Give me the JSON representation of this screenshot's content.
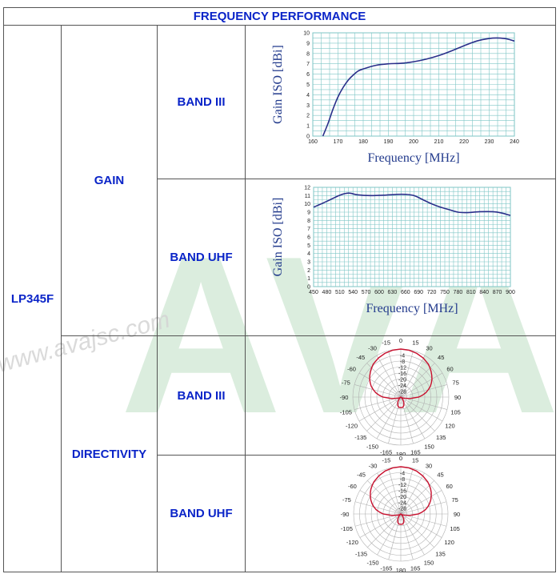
{
  "header": {
    "title": "FREQUENCY PERFORMANCE"
  },
  "model": {
    "name": "LP345F"
  },
  "sections": {
    "gain": "GAIN",
    "directivity": "DIRECTIVITY"
  },
  "bands": {
    "band_iii": "BAND III",
    "band_uhf": "BAND UHF"
  },
  "watermark": {
    "big": "AVA",
    "url": "www.avajsc.com"
  },
  "colors": {
    "title_blue": "#0a24c8",
    "curve": "#2a2f8a",
    "pattern": "#c8102e",
    "grid": "#7fc6c6",
    "watermark": "#cfe8d4"
  },
  "chart_data": [
    {
      "type": "line",
      "id": "gain-band-iii",
      "xlabel": "Frequency [MHz]",
      "ylabel": "Gain ISO [dBi]",
      "xlim": [
        160,
        240
      ],
      "ylim": [
        0,
        10
      ],
      "x_ticks": [
        160,
        170,
        180,
        190,
        200,
        210,
        220,
        230,
        240
      ],
      "y_ticks": [
        0,
        1,
        2,
        3,
        4,
        5,
        6,
        7,
        8,
        9,
        10
      ],
      "series": [
        {
          "x": [
            164,
            166,
            168,
            170,
            172,
            174,
            176,
            178,
            180,
            185,
            190,
            195,
            200,
            205,
            210,
            215,
            220,
            225,
            230,
            233,
            236,
            238,
            240
          ],
          "y": [
            0,
            1.2,
            2.6,
            3.8,
            4.7,
            5.4,
            5.9,
            6.3,
            6.5,
            6.85,
            7.0,
            7.05,
            7.2,
            7.45,
            7.8,
            8.25,
            8.75,
            9.2,
            9.45,
            9.5,
            9.45,
            9.35,
            9.2
          ]
        }
      ]
    },
    {
      "type": "line",
      "id": "gain-band-uhf",
      "xlabel": "Frequency [MHz]",
      "ylabel": "Gain ISO [dBi]",
      "xlim": [
        450,
        900
      ],
      "ylim": [
        0,
        12
      ],
      "x_ticks": [
        450,
        480,
        510,
        540,
        570,
        600,
        630,
        660,
        690,
        720,
        750,
        780,
        810,
        840,
        870,
        900
      ],
      "y_ticks": [
        0,
        1,
        2,
        3,
        4,
        5,
        6,
        7,
        8,
        9,
        10,
        11,
        12
      ],
      "series": [
        {
          "x": [
            450,
            480,
            510,
            530,
            550,
            580,
            610,
            640,
            660,
            680,
            700,
            720,
            740,
            760,
            780,
            800,
            830,
            860,
            880,
            900
          ],
          "y": [
            9.6,
            10.3,
            11.05,
            11.3,
            11.1,
            11.0,
            11.05,
            11.15,
            11.15,
            11.0,
            10.5,
            10.0,
            9.6,
            9.3,
            9.0,
            8.95,
            9.05,
            9.05,
            8.9,
            8.6
          ]
        }
      ]
    },
    {
      "type": "polar",
      "id": "directivity-band-iii",
      "angle_labels": [
        "0",
        "15",
        "30",
        "45",
        "60",
        "75",
        "90",
        "105",
        "120",
        "135",
        "150",
        "165",
        "180",
        "-165",
        "-150",
        "-135",
        "-120",
        "-105",
        "-90",
        "-75",
        "-60",
        "-45",
        "-30",
        "-15"
      ],
      "radial_labels": [
        "-4",
        "-8",
        "-12",
        "-16",
        "-20",
        "-24",
        "-28"
      ],
      "rlim_db": [
        -32,
        0
      ],
      "pattern_angles": [
        0,
        10,
        20,
        30,
        40,
        45,
        50,
        55,
        60,
        65,
        70,
        75,
        80,
        85,
        90,
        100,
        110,
        120,
        130,
        140,
        150,
        160,
        170,
        180,
        190,
        200,
        210,
        220,
        230,
        240,
        250,
        260,
        270,
        275,
        280,
        285,
        290,
        295,
        300,
        305,
        310,
        315,
        320,
        330,
        340,
        350,
        360
      ],
      "pattern_db": [
        0,
        -0.3,
        -1,
        -2,
        -3.4,
        -4.5,
        -5.6,
        -6.8,
        -8,
        -9.5,
        -11,
        -13,
        -15,
        -17.5,
        -20,
        -26,
        -30,
        -31,
        -31.5,
        -30,
        -28,
        -26,
        -25,
        -25,
        -25,
        -26,
        -28,
        -30,
        -31.5,
        -31,
        -30,
        -26,
        -20,
        -17.5,
        -15,
        -13,
        -11,
        -9.5,
        -8,
        -6.8,
        -5.6,
        -4.5,
        -3.4,
        -2,
        -1,
        -0.3,
        0
      ]
    },
    {
      "type": "polar",
      "id": "directivity-band-uhf",
      "angle_labels": [
        "0",
        "15",
        "30",
        "45",
        "60",
        "75",
        "90",
        "105",
        "120",
        "135",
        "150",
        "165",
        "180",
        "-165",
        "-150",
        "-135",
        "-120",
        "-105",
        "-90",
        "-75",
        "-60",
        "-45",
        "-30",
        "-15"
      ],
      "radial_labels": [
        "-4",
        "-8",
        "-12",
        "-16",
        "-20",
        "-24",
        "-28"
      ],
      "rlim_db": [
        -32,
        0
      ],
      "pattern_angles": [
        0,
        10,
        20,
        30,
        40,
        45,
        50,
        55,
        60,
        65,
        70,
        75,
        80,
        85,
        90,
        100,
        110,
        120,
        130,
        140,
        150,
        160,
        170,
        180,
        190,
        200,
        210,
        220,
        230,
        240,
        250,
        260,
        270,
        275,
        280,
        285,
        290,
        295,
        300,
        305,
        310,
        315,
        320,
        330,
        340,
        350,
        360
      ],
      "pattern_db": [
        0,
        -0.3,
        -1,
        -2.2,
        -3.6,
        -4.6,
        -5.6,
        -6.8,
        -8.2,
        -9.6,
        -11.2,
        -13,
        -15,
        -17.5,
        -20,
        -26,
        -30,
        -31,
        -31.5,
        -30,
        -28,
        -26,
        -25,
        -25,
        -25,
        -26,
        -28,
        -30,
        -31.5,
        -31,
        -30,
        -26,
        -20,
        -17.5,
        -15,
        -13,
        -11.2,
        -9.6,
        -8.2,
        -6.8,
        -5.6,
        -4.6,
        -3.6,
        -2.2,
        -1,
        -0.3,
        0
      ]
    }
  ]
}
